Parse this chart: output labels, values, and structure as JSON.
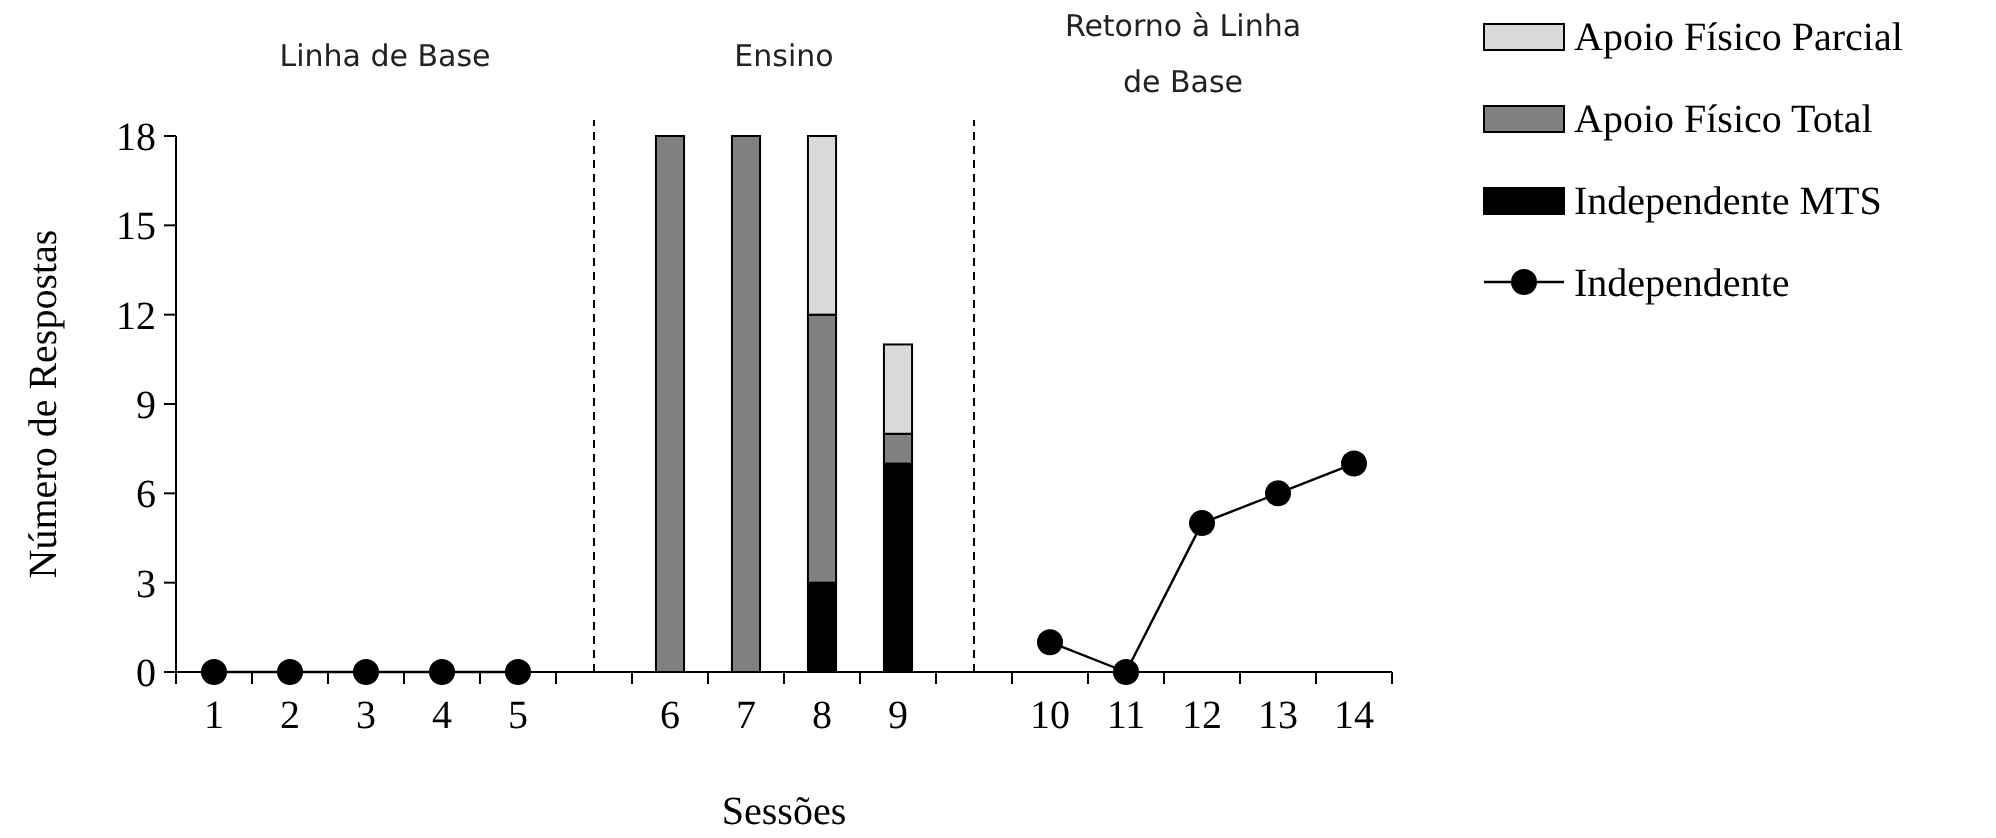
{
  "chart_data": {
    "type": "bar",
    "stacked": true,
    "xlabel": "Sessões",
    "ylabel": "Número de Respostas",
    "annotations": [
      "Linha de Base",
      "Ensino",
      "Retorno à Linha de Base"
    ],
    "categories": [
      "1",
      "2",
      "3",
      "4",
      "5",
      null,
      "6",
      "7",
      "8",
      "9",
      null,
      "10",
      "11",
      "12",
      "13",
      "14"
    ],
    "series": [
      {
        "name": "Independente MTS",
        "color": "#000000",
        "values": [
          null,
          null,
          null,
          null,
          null,
          null,
          0,
          0,
          3,
          7,
          null,
          null,
          null,
          null,
          null,
          null
        ]
      },
      {
        "name": "Apoio Físico Total",
        "color": "#808080",
        "values": [
          null,
          null,
          null,
          null,
          null,
          null,
          18,
          18,
          9,
          1,
          null,
          null,
          null,
          null,
          null,
          null
        ]
      },
      {
        "name": "Apoio Físico Parcial",
        "color": "#d9d9d9",
        "values": [
          null,
          null,
          null,
          null,
          null,
          null,
          0,
          0,
          6,
          3,
          null,
          null,
          null,
          null,
          null,
          null
        ]
      },
      {
        "name": "Independente",
        "type": "line",
        "color": "#000000",
        "marker": "circle",
        "values": [
          0,
          0,
          0,
          0,
          0,
          null,
          null,
          null,
          null,
          null,
          null,
          1,
          0,
          5,
          6,
          7
        ]
      }
    ],
    "ylim": [
      0,
      18
    ],
    "yticks": [
      0,
      3,
      6,
      9,
      12,
      15,
      18
    ],
    "legend": "top right"
  }
}
